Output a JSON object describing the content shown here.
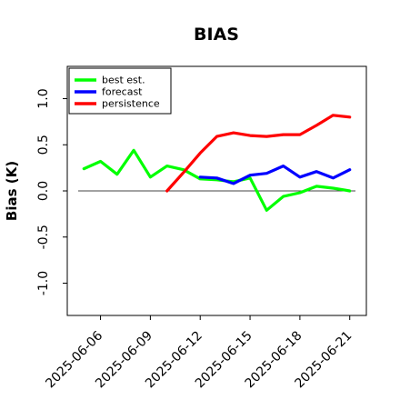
{
  "chart_data": {
    "type": "line",
    "title": "BIAS",
    "xlabel": "",
    "ylabel": "Bias (K)",
    "ylim": [
      -1.35,
      1.35
    ],
    "yticks": [
      -1.0,
      -0.5,
      0.0,
      0.5,
      1.0
    ],
    "ytick_labels": [
      "-1.0",
      "-0.5",
      "0.0",
      "0.5",
      "1.0"
    ],
    "xticks": [
      "2025-06-06",
      "2025-06-09",
      "2025-06-12",
      "2025-06-15",
      "2025-06-18",
      "2025-06-21"
    ],
    "highlighted_xtick": "2025-06-12",
    "highlight_color": "#228b22",
    "zero_line": true,
    "grid": false,
    "legend_position": "top-left",
    "series": [
      {
        "name": "best est.",
        "color": "#00ff00",
        "x": [
          "2025-06-05",
          "2025-06-06",
          "2025-06-07",
          "2025-06-08",
          "2025-06-09",
          "2025-06-10",
          "2025-06-11",
          "2025-06-12",
          "2025-06-13",
          "2025-06-14",
          "2025-06-15",
          "2025-06-16",
          "2025-06-17",
          "2025-06-18",
          "2025-06-19",
          "2025-06-20",
          "2025-06-21"
        ],
        "values": [
          0.24,
          0.32,
          0.18,
          0.44,
          0.15,
          0.27,
          0.23,
          0.13,
          0.12,
          0.1,
          0.14,
          -0.21,
          -0.06,
          -0.02,
          0.05,
          0.03,
          0.0
        ]
      },
      {
        "name": "forecast",
        "color": "#0000ff",
        "x": [
          "2025-06-12",
          "2025-06-13",
          "2025-06-14",
          "2025-06-15",
          "2025-06-16",
          "2025-06-17",
          "2025-06-18",
          "2025-06-19",
          "2025-06-20",
          "2025-06-21"
        ],
        "values": [
          0.15,
          0.14,
          0.08,
          0.17,
          0.19,
          0.27,
          0.15,
          0.21,
          0.14,
          0.23
        ]
      },
      {
        "name": "persistence",
        "color": "#ff0000",
        "x": [
          "2025-06-10",
          "2025-06-11",
          "2025-06-12",
          "2025-06-13",
          "2025-06-14",
          "2025-06-15",
          "2025-06-16",
          "2025-06-17",
          "2025-06-18",
          "2025-06-19",
          "2025-06-20",
          "2025-06-21"
        ],
        "values": [
          0.0,
          0.2,
          0.41,
          0.59,
          0.63,
          0.6,
          0.59,
          0.61,
          0.61,
          0.71,
          0.82,
          0.8
        ]
      }
    ]
  }
}
